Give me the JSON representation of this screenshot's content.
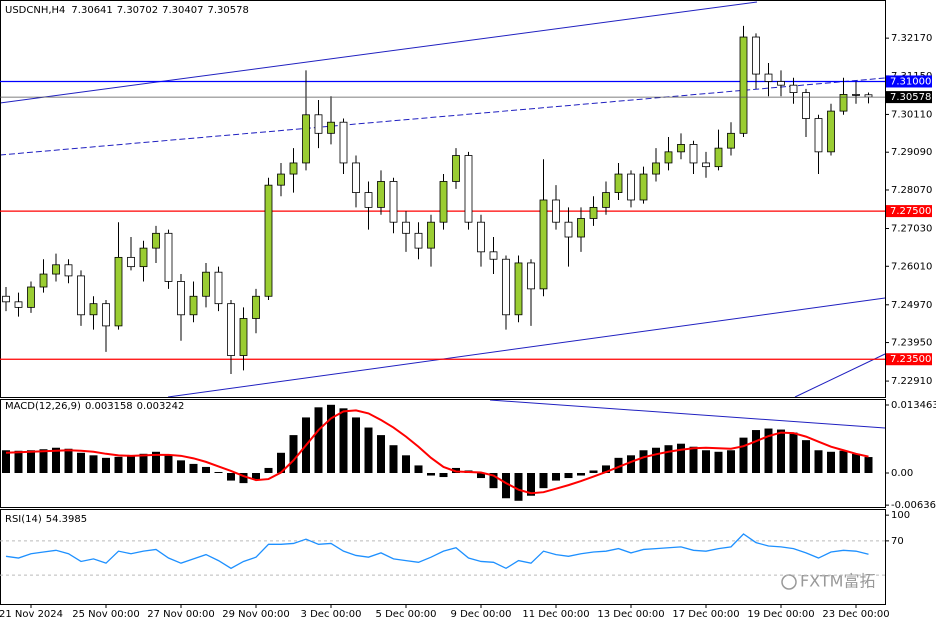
{
  "chart_data": {
    "type": "candlestick",
    "title": "USDCNH,H4",
    "categories": [
      null,
      null,
      "21 Nov 2024",
      null,
      null,
      null,
      null,
      null,
      "25 Nov 00:00",
      null,
      null,
      null,
      null,
      null,
      "27 Nov 00:00",
      null,
      null,
      null,
      null,
      null,
      "29 Nov 00:00",
      null,
      null,
      null,
      null,
      null,
      "3 Dec 00:00",
      null,
      null,
      null,
      null,
      null,
      "5 Dec 00:00",
      null,
      null,
      null,
      null,
      null,
      "9 Dec 00:00",
      null,
      null,
      null,
      null,
      null,
      "11 Dec 00:00",
      null,
      null,
      null,
      null,
      null,
      "13 Dec 00:00",
      null,
      null,
      null,
      null,
      null,
      "17 Dec 00:00",
      null,
      null,
      null,
      null,
      null,
      "19 Dec 00:00",
      null,
      null,
      null,
      null,
      null,
      "23 Dec 00:00",
      null
    ],
    "open": [
      7.252,
      7.2505,
      7.249,
      7.2545,
      7.258,
      7.2605,
      7.2575,
      7.247,
      7.25,
      7.244,
      7.2625,
      7.26,
      7.265,
      7.269,
      7.256,
      7.247,
      7.252,
      7.2585,
      7.25,
      7.236,
      7.246,
      7.252,
      7.282,
      7.285,
      7.288,
      7.301,
      7.296,
      7.299,
      7.288,
      7.28,
      7.276,
      7.283,
      7.272,
      7.269,
      7.265,
      7.272,
      7.283,
      7.29,
      7.272,
      7.264,
      7.262,
      7.247,
      7.261,
      7.254,
      7.278,
      7.272,
      7.268,
      7.273,
      7.276,
      7.28,
      7.285,
      7.278,
      7.285,
      7.288,
      7.291,
      7.293,
      7.288,
      7.287,
      7.292,
      7.296,
      7.322,
      7.312,
      7.31,
      7.309,
      7.307,
      7.3,
      7.291,
      7.302,
      7.3065,
      7.30641
    ],
    "high": [
      7.2545,
      7.253,
      7.256,
      7.262,
      7.2635,
      7.262,
      7.259,
      7.252,
      7.251,
      7.272,
      7.268,
      7.267,
      7.271,
      7.27,
      7.258,
      7.256,
      7.261,
      7.26,
      7.251,
      7.249,
      7.254,
      7.284,
      7.288,
      7.292,
      7.313,
      7.305,
      7.306,
      7.3,
      7.29,
      7.283,
      7.286,
      7.284,
      7.275,
      7.272,
      7.274,
      7.285,
      7.292,
      7.291,
      7.274,
      7.268,
      7.263,
      7.263,
      7.262,
      7.289,
      7.282,
      7.276,
      7.276,
      7.279,
      7.283,
      7.288,
      7.286,
      7.287,
      7.292,
      7.295,
      7.296,
      7.294,
      7.291,
      7.297,
      7.299,
      7.325,
      7.323,
      7.315,
      7.313,
      7.311,
      7.308,
      7.301,
      7.304,
      7.311,
      7.31,
      7.30702
    ],
    "low": [
      7.248,
      7.2465,
      7.2475,
      7.253,
      7.256,
      7.2555,
      7.244,
      7.243,
      7.237,
      7.243,
      7.259,
      7.256,
      7.261,
      7.254,
      7.24,
      7.245,
      7.249,
      7.248,
      7.231,
      7.232,
      7.242,
      7.251,
      7.279,
      7.28,
      7.286,
      7.292,
      7.293,
      7.285,
      7.276,
      7.27,
      7.274,
      7.269,
      7.264,
      7.262,
      7.26,
      7.27,
      7.281,
      7.27,
      7.26,
      7.258,
      7.243,
      7.245,
      7.244,
      7.252,
      7.27,
      7.26,
      7.264,
      7.271,
      7.274,
      7.278,
      7.276,
      7.277,
      7.283,
      7.286,
      7.289,
      7.285,
      7.284,
      7.286,
      7.29,
      7.295,
      7.308,
      7.306,
      7.306,
      7.304,
      7.295,
      7.285,
      7.29,
      7.301,
      7.304,
      7.30407
    ],
    "close": [
      7.2505,
      7.249,
      7.2545,
      7.258,
      7.2605,
      7.2575,
      7.247,
      7.25,
      7.244,
      7.2625,
      7.26,
      7.265,
      7.269,
      7.256,
      7.247,
      7.252,
      7.2585,
      7.25,
      7.236,
      7.246,
      7.252,
      7.282,
      7.285,
      7.288,
      7.301,
      7.296,
      7.299,
      7.288,
      7.28,
      7.276,
      7.283,
      7.272,
      7.269,
      7.265,
      7.272,
      7.283,
      7.29,
      7.272,
      7.264,
      7.262,
      7.247,
      7.261,
      7.254,
      7.278,
      7.272,
      7.268,
      7.273,
      7.276,
      7.28,
      7.285,
      7.278,
      7.285,
      7.288,
      7.291,
      7.293,
      7.288,
      7.287,
      7.292,
      7.296,
      7.322,
      7.312,
      7.31,
      7.309,
      7.307,
      7.3,
      7.291,
      7.302,
      7.3065,
      7.3064,
      7.30578
    ],
    "up_color": "#9acd32",
    "down_color": "#ffffff",
    "ylim": [
      7.2248,
      7.332
    ],
    "yticks": [
      {
        "value": 7.3217,
        "label": "7.32170"
      },
      {
        "value": 7.3115,
        "label": "7.31150"
      },
      {
        "value": 7.3011,
        "label": "7.30110"
      },
      {
        "value": 7.2909,
        "label": "7.29090"
      },
      {
        "value": 7.2807,
        "label": "7.28070"
      },
      {
        "value": 7.2703,
        "label": "7.27030"
      },
      {
        "value": 7.2601,
        "label": "7.26010"
      },
      {
        "value": 7.2497,
        "label": "7.24970"
      },
      {
        "value": 7.2395,
        "label": "7.23950"
      },
      {
        "value": 7.2291,
        "label": "7.22910"
      }
    ],
    "levels": [
      {
        "value": 7.31,
        "label": "7.31000",
        "color": "#0000ff"
      },
      {
        "value": 7.275,
        "label": "7.27500",
        "color": "#ff0000"
      },
      {
        "value": 7.235,
        "label": "7.23500",
        "color": "#ff0000"
      }
    ],
    "macd": {
      "label": "MACD(12,26,9)",
      "histogram": [
        0.0045,
        0.0044,
        0.0045,
        0.0047,
        0.005,
        0.0048,
        0.004,
        0.0035,
        0.003,
        0.0032,
        0.0035,
        0.0038,
        0.0042,
        0.0035,
        0.0025,
        0.0018,
        0.0012,
        0.0002,
        -0.0015,
        -0.002,
        -0.0012,
        0.001,
        0.004,
        0.0075,
        0.011,
        0.013,
        0.0135,
        0.0128,
        0.011,
        0.009,
        0.0075,
        0.0055,
        0.0035,
        0.0015,
        -0.0005,
        -0.0008,
        0.001,
        0.0005,
        -0.001,
        -0.003,
        -0.005,
        -0.0055,
        -0.0045,
        -0.003,
        -0.0015,
        -0.001,
        -0.0005,
        0.0005,
        0.0015,
        0.003,
        0.0035,
        0.0045,
        0.005,
        0.0055,
        0.0058,
        0.0052,
        0.0045,
        0.0042,
        0.0045,
        0.007,
        0.0085,
        0.0088,
        0.0086,
        0.008,
        0.0065,
        0.0045,
        0.0042,
        0.0044,
        0.0038,
        0.003158
      ],
      "signal": [
        0.004,
        0.0041,
        0.0042,
        0.0043,
        0.0044,
        0.0045,
        0.0044,
        0.0042,
        0.0038,
        0.0035,
        0.0034,
        0.0035,
        0.0036,
        0.0036,
        0.0034,
        0.0029,
        0.0022,
        0.0013,
        0.0004,
        -0.0006,
        -0.0014,
        -0.0012,
        0.0001,
        0.0025,
        0.0055,
        0.0085,
        0.0108,
        0.0122,
        0.0124,
        0.0118,
        0.0105,
        0.009,
        0.0072,
        0.0052,
        0.003,
        0.0012,
        0.0003,
        0.0002,
        0.0001,
        -0.0005,
        -0.002,
        -0.0033,
        -0.004,
        -0.0038,
        -0.0031,
        -0.0024,
        -0.0016,
        -0.0007,
        0.0002,
        0.0012,
        0.0022,
        0.0031,
        0.0037,
        0.0042,
        0.0046,
        0.0049,
        0.005,
        0.0049,
        0.0048,
        0.0053,
        0.0063,
        0.0073,
        0.008,
        0.0079,
        0.0072,
        0.0062,
        0.0052,
        0.0045,
        0.0038,
        0.003242
      ],
      "histogram_color": "#000000",
      "signal_color": "#ff0000",
      "ylim": [
        -0.00673,
        0.01445
      ],
      "yticks": [
        0.013463,
        {
          "value": 0,
          "label": "0.00"
        },
        -0.006361
      ]
    },
    "rsi": {
      "label": "RSI(14)",
      "values": [
        52,
        50,
        55,
        57,
        59,
        55,
        46,
        49,
        44,
        58,
        55,
        58,
        60,
        50,
        44,
        49,
        54,
        47,
        38,
        46,
        51,
        66,
        66,
        67,
        72,
        66,
        67,
        58,
        53,
        51,
        56,
        49,
        47,
        45,
        51,
        58,
        62,
        50,
        46,
        45,
        38,
        47,
        44,
        58,
        54,
        52,
        55,
        57,
        58,
        61,
        56,
        60,
        61,
        62,
        63,
        59,
        58,
        61,
        63,
        78,
        68,
        64,
        63,
        61,
        56,
        50,
        57,
        59,
        58,
        54.3985
      ],
      "color": "#1e90ff",
      "ylim": [
        -3.6,
        106
      ],
      "yticks": [
        100,
        70
      ],
      "levels": [
        70,
        30
      ]
    },
    "watermark": "FXTM富拓"
  }
}
